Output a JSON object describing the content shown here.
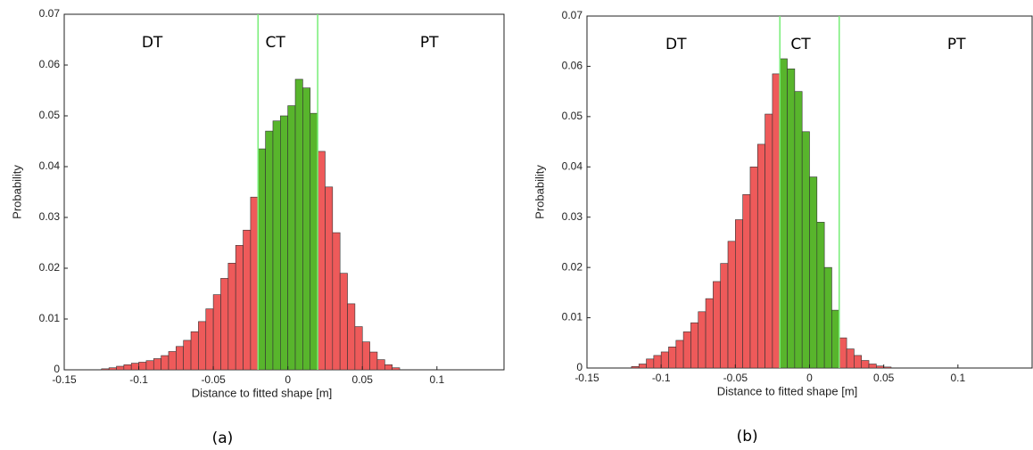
{
  "chart_data": [
    {
      "type": "histogram",
      "xlabel": "Distance to fitted shape [m]",
      "ylabel": "Probability",
      "caption": "(a)",
      "annotations": [
        "DT",
        "CT",
        "PT"
      ],
      "bins": [
        -0.125,
        -0.12,
        -0.115,
        -0.11,
        -0.105,
        -0.1,
        -0.095,
        -0.09,
        -0.085,
        -0.08,
        -0.075,
        -0.07,
        -0.065,
        -0.06,
        -0.055,
        -0.05,
        -0.045,
        -0.04,
        -0.035,
        -0.03,
        -0.025,
        -0.02,
        -0.015,
        -0.01,
        -0.005,
        0,
        0.005,
        0.01,
        0.015,
        0.02,
        0.025,
        0.03,
        0.035,
        0.04,
        0.045,
        0.05,
        0.055,
        0.06,
        0.065,
        0.07,
        0.075
      ],
      "values": [
        0.0002,
        0.0004,
        0.0007,
        0.001,
        0.0013,
        0.0015,
        0.0018,
        0.0022,
        0.0028,
        0.0036,
        0.0046,
        0.0058,
        0.0075,
        0.0095,
        0.012,
        0.0148,
        0.018,
        0.021,
        0.0245,
        0.0275,
        0.034,
        0.0435,
        0.047,
        0.049,
        0.05,
        0.052,
        0.0572,
        0.0555,
        0.0505,
        0.043,
        0.036,
        0.027,
        0.019,
        0.013,
        0.0085,
        0.0055,
        0.0035,
        0.002,
        0.001,
        0.0004
      ],
      "color": "#ee5a5a",
      "highlight_color": "#58b52c",
      "ct_lines": [
        -0.02,
        0.02
      ],
      "line_color": "#77ee77",
      "xlim": [
        -0.15,
        0.145
      ],
      "ylim": [
        0,
        0.07
      ],
      "xticks": [
        -0.15,
        -0.1,
        -0.05,
        0,
        0.05,
        0.1
      ],
      "yticks": [
        0,
        0.01,
        0.02,
        0.03,
        0.04,
        0.05,
        0.06,
        0.07
      ]
    },
    {
      "type": "histogram",
      "xlabel": "Distance to fitted shape [m]",
      "ylabel": "Probability",
      "caption": "(b)",
      "annotations": [
        "DT",
        "CT",
        "PT"
      ],
      "bins": [
        -0.12,
        -0.115,
        -0.11,
        -0.105,
        -0.1,
        -0.095,
        -0.09,
        -0.085,
        -0.08,
        -0.075,
        -0.07,
        -0.065,
        -0.06,
        -0.055,
        -0.05,
        -0.045,
        -0.04,
        -0.035,
        -0.03,
        -0.025,
        -0.02,
        -0.015,
        -0.01,
        -0.005,
        0,
        0.005,
        0.01,
        0.015,
        0.02,
        0.025,
        0.03,
        0.035,
        0.04,
        0.045,
        0.05,
        0.055
      ],
      "values": [
        0.0003,
        0.0008,
        0.0018,
        0.0025,
        0.0032,
        0.0042,
        0.0055,
        0.0072,
        0.009,
        0.0112,
        0.0138,
        0.0172,
        0.0208,
        0.0252,
        0.0295,
        0.0345,
        0.04,
        0.0445,
        0.0505,
        0.0585,
        0.0615,
        0.0595,
        0.055,
        0.047,
        0.038,
        0.029,
        0.02,
        0.0115,
        0.006,
        0.0038,
        0.0025,
        0.0015,
        0.0008,
        0.0004,
        0.0002
      ],
      "color": "#ee5a5a",
      "highlight_color": "#58b52c",
      "ct_lines": [
        -0.02,
        0.02
      ],
      "line_color": "#77ee77",
      "xlim": [
        -0.15,
        0.15
      ],
      "ylim": [
        0,
        0.07
      ],
      "xticks": [
        -0.15,
        -0.1,
        -0.05,
        0,
        0.05,
        0.1
      ],
      "yticks": [
        0,
        0.01,
        0.02,
        0.03,
        0.04,
        0.05,
        0.06,
        0.07
      ]
    }
  ]
}
